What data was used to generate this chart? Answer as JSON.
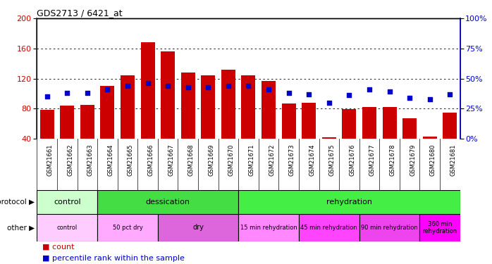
{
  "title": "GDS2713 / 6421_at",
  "samples": [
    "GSM21661",
    "GSM21662",
    "GSM21663",
    "GSM21664",
    "GSM21665",
    "GSM21666",
    "GSM21667",
    "GSM21668",
    "GSM21669",
    "GSM21670",
    "GSM21671",
    "GSM21672",
    "GSM21673",
    "GSM21674",
    "GSM21675",
    "GSM21676",
    "GSM21677",
    "GSM21678",
    "GSM21679",
    "GSM21680",
    "GSM21681"
  ],
  "counts": [
    78,
    84,
    85,
    110,
    124,
    168,
    156,
    128,
    124,
    132,
    124,
    117,
    87,
    88,
    42,
    79,
    82,
    82,
    67,
    43,
    75
  ],
  "percentiles": [
    35,
    38,
    38,
    41,
    44,
    46,
    44,
    43,
    43,
    44,
    44,
    41,
    38,
    37,
    30,
    36,
    41,
    39,
    34,
    33,
    37
  ],
  "ylim_left": [
    40,
    200
  ],
  "ylim_right": [
    0,
    100
  ],
  "yticks_left": [
    40,
    80,
    120,
    160,
    200
  ],
  "yticks_right": [
    0,
    25,
    50,
    75,
    100
  ],
  "bar_color": "#cc0000",
  "dot_color": "#0000cc",
  "protocol_groups": [
    {
      "label": "control",
      "start": 0,
      "end": 3,
      "color": "#ccffcc"
    },
    {
      "label": "dessication",
      "start": 3,
      "end": 10,
      "color": "#44dd44"
    },
    {
      "label": "rehydration",
      "start": 10,
      "end": 21,
      "color": "#44ee44"
    }
  ],
  "other_groups": [
    {
      "label": "control",
      "start": 0,
      "end": 3,
      "color": "#ffccff"
    },
    {
      "label": "50 pct dry",
      "start": 3,
      "end": 6,
      "color": "#ffaaff"
    },
    {
      "label": "dry",
      "start": 6,
      "end": 10,
      "color": "#dd66dd"
    },
    {
      "label": "15 min rehydration",
      "start": 10,
      "end": 13,
      "color": "#ff88ff"
    },
    {
      "label": "45 min rehydration",
      "start": 13,
      "end": 16,
      "color": "#ff44ff"
    },
    {
      "label": "90 min rehydration",
      "start": 16,
      "end": 19,
      "color": "#ee44ee"
    },
    {
      "label": "360 min\nrehydration",
      "start": 19,
      "end": 21,
      "color": "#ff00ff"
    }
  ],
  "xlabel_color": "#cc0000",
  "ylabel_right_color": "#0000cc",
  "background_color": "#ffffff",
  "tick_area_bg": "#cccccc"
}
